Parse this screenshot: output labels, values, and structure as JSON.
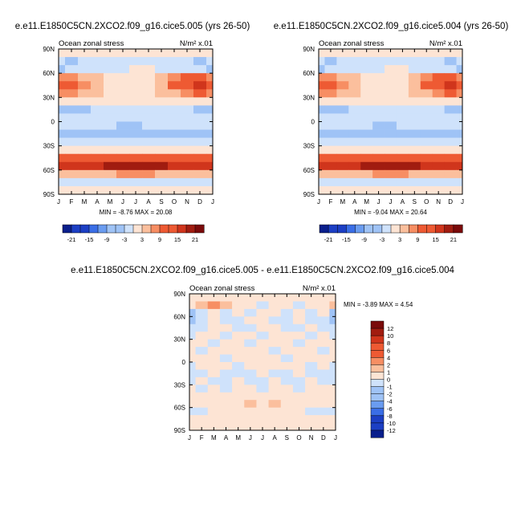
{
  "colors": {
    "negative_scale": [
      "#0a1f8c",
      "#1c3fc4",
      "#3a6ee6",
      "#6a9cf0",
      "#9fc3f6",
      "#cfe2fb"
    ],
    "neutral": "#ffffff",
    "positive_scale": [
      "#fde4d4",
      "#fbbf9d",
      "#f78e63",
      "#ee5a33",
      "#d0351c",
      "#a11c10",
      "#7a0a0a"
    ]
  },
  "chart_data": [
    {
      "type": "heatmap",
      "title": "e.e11.E1850C5CN.2XCO2.f09_g16.cice5.005 (yrs 26-50)",
      "left_label": "Ocean zonal stress",
      "units_label": "N/m² x.01",
      "x_tick_labels": [
        "J",
        "F",
        "M",
        "A",
        "M",
        "J",
        "J",
        "A",
        "S",
        "O",
        "N",
        "D",
        "J"
      ],
      "y_tick_labels": [
        "90N",
        "60N",
        "30N",
        "0",
        "30S",
        "60S",
        "90S"
      ],
      "stats_text": "MIN = -8.76 MAX = 20.08",
      "legend": {
        "orientation": "horizontal",
        "placement": "bottom",
        "labels": [
          "-21",
          "-15",
          "-9",
          "-3",
          "3",
          "9",
          "15",
          "21"
        ]
      },
      "rows": [
        {
          "lat": "90N-80N",
          "values": [
            0,
            0,
            0,
            0,
            0,
            0,
            0,
            0,
            0,
            0,
            0,
            0,
            0
          ]
        },
        {
          "lat": "80N-70N",
          "values": [
            -2,
            -4,
            -2,
            -2,
            -2,
            -1,
            -1,
            -1,
            -2,
            -2,
            -2,
            -4,
            -2
          ]
        },
        {
          "lat": "70N-60N",
          "values": [
            -4,
            -2,
            -2,
            -2,
            -1,
            -1,
            1,
            1,
            -1,
            -2,
            -2,
            -2,
            -4
          ]
        },
        {
          "lat": "60N-50N",
          "values": [
            7,
            6,
            4,
            3,
            2,
            1,
            1,
            2,
            4,
            6,
            9,
            11,
            7
          ]
        },
        {
          "lat": "50N-40N",
          "values": [
            11,
            10,
            7,
            4,
            2,
            1,
            1,
            2,
            5,
            9,
            13,
            15,
            11
          ]
        },
        {
          "lat": "40N-30N",
          "values": [
            8,
            7,
            5,
            3,
            1,
            1,
            1,
            1,
            3,
            5,
            8,
            10,
            8
          ]
        },
        {
          "lat": "30N-20N",
          "values": [
            1,
            1,
            1,
            1,
            1,
            1,
            1,
            1,
            1,
            1,
            1,
            1,
            1
          ]
        },
        {
          "lat": "20N-10N",
          "values": [
            -4,
            -4,
            -4,
            -3,
            -3,
            -3,
            -3,
            -3,
            -3,
            -3,
            -3,
            -4,
            -4
          ]
        },
        {
          "lat": "10N-0",
          "values": [
            -3,
            -3,
            -3,
            -2,
            -2,
            -2,
            -2,
            -1,
            -1,
            -2,
            -2,
            -3,
            -3
          ]
        },
        {
          "lat": "0-10S",
          "values": [
            -3,
            -3,
            -3,
            -3,
            -3,
            -4,
            -4,
            -3,
            -3,
            -3,
            -3,
            -3,
            -3
          ]
        },
        {
          "lat": "10S-20S",
          "values": [
            -6,
            -7,
            -7,
            -5,
            -5,
            -6,
            -7,
            -7,
            -6,
            -5,
            -5,
            -6,
            -6
          ]
        },
        {
          "lat": "20S-30S",
          "values": [
            -2,
            -2,
            -2,
            -1,
            -1,
            -2,
            -2,
            -2,
            -1,
            -1,
            -1,
            -2,
            -2
          ]
        },
        {
          "lat": "30S-40S",
          "values": [
            1,
            1,
            1,
            1,
            1,
            1,
            1,
            1,
            1,
            1,
            1,
            1,
            1
          ]
        },
        {
          "lat": "40S-50S",
          "values": [
            9,
            9,
            10,
            11,
            12,
            13,
            13,
            13,
            12,
            11,
            10,
            9,
            9
          ]
        },
        {
          "lat": "50S-60S",
          "values": [
            15,
            15,
            16,
            17,
            18,
            19,
            20,
            19,
            18,
            17,
            16,
            15,
            15
          ]
        },
        {
          "lat": "60S-70S",
          "values": [
            3,
            3,
            4,
            4,
            5,
            6,
            6,
            6,
            5,
            4,
            3,
            3,
            3
          ]
        },
        {
          "lat": "70S-80S",
          "values": [
            -1,
            -1,
            -1,
            -1,
            -1,
            -1,
            -1,
            -1,
            -1,
            -1,
            -1,
            -1,
            -1
          ]
        },
        {
          "lat": "80S-90S",
          "values": [
            0,
            0,
            0,
            0,
            0,
            0,
            0,
            0,
            0,
            0,
            0,
            0,
            0
          ]
        }
      ],
      "legend_levels": [
        -21,
        -18,
        -15,
        -12,
        -9,
        -6,
        -3,
        0,
        3,
        6,
        9,
        12,
        15,
        18,
        21
      ]
    },
    {
      "type": "heatmap",
      "title": "e.e11.E1850C5CN.2XCO2.f09_g16.cice5.004 (yrs 26-50)",
      "left_label": "Ocean zonal stress",
      "units_label": "N/m² x.01",
      "x_tick_labels": [
        "J",
        "F",
        "M",
        "A",
        "M",
        "J",
        "J",
        "A",
        "S",
        "O",
        "N",
        "D",
        "J"
      ],
      "y_tick_labels": [
        "90N",
        "60N",
        "30N",
        "0",
        "30S",
        "60S",
        "90S"
      ],
      "stats_text": "MIN = -9.04 MAX = 20.64",
      "legend": {
        "orientation": "horizontal",
        "placement": "bottom",
        "labels": [
          "-21",
          "-15",
          "-9",
          "-3",
          "3",
          "9",
          "15",
          "21"
        ]
      },
      "rows": [
        {
          "lat": "90N-80N",
          "values": [
            0,
            0,
            0,
            0,
            0,
            0,
            0,
            0,
            0,
            0,
            0,
            0,
            0
          ]
        },
        {
          "lat": "80N-70N",
          "values": [
            -2,
            -4,
            -2,
            -2,
            -2,
            -1,
            -1,
            -1,
            -2,
            -2,
            -2,
            -4,
            -2
          ]
        },
        {
          "lat": "70N-60N",
          "values": [
            -4,
            -3,
            -2,
            -2,
            -1,
            -1,
            1,
            1,
            -1,
            -2,
            -2,
            -3,
            -4
          ]
        },
        {
          "lat": "60N-50N",
          "values": [
            7,
            6,
            4,
            3,
            2,
            1,
            1,
            2,
            4,
            6,
            9,
            11,
            7
          ]
        },
        {
          "lat": "50N-40N",
          "values": [
            11,
            10,
            7,
            4,
            2,
            1,
            1,
            2,
            5,
            9,
            13,
            16,
            11
          ]
        },
        {
          "lat": "40N-30N",
          "values": [
            8,
            7,
            5,
            3,
            1,
            1,
            1,
            1,
            3,
            5,
            8,
            10,
            8
          ]
        },
        {
          "lat": "30N-20N",
          "values": [
            1,
            1,
            1,
            1,
            1,
            1,
            1,
            1,
            1,
            1,
            1,
            1,
            1
          ]
        },
        {
          "lat": "20N-10N",
          "values": [
            -4,
            -4,
            -4,
            -3,
            -3,
            -3,
            -3,
            -3,
            -3,
            -3,
            -3,
            -4,
            -4
          ]
        },
        {
          "lat": "10N-0",
          "values": [
            -3,
            -3,
            -3,
            -2,
            -2,
            -2,
            -2,
            -1,
            -1,
            -2,
            -2,
            -3,
            -3
          ]
        },
        {
          "lat": "0-10S",
          "values": [
            -3,
            -3,
            -3,
            -3,
            -3,
            -4,
            -4,
            -3,
            -3,
            -3,
            -3,
            -3,
            -3
          ]
        },
        {
          "lat": "10S-20S",
          "values": [
            -6,
            -7,
            -7,
            -5,
            -5,
            -6,
            -7,
            -7,
            -6,
            -5,
            -5,
            -6,
            -6
          ]
        },
        {
          "lat": "20S-30S",
          "values": [
            -2,
            -2,
            -2,
            -1,
            -1,
            -2,
            -2,
            -2,
            -1,
            -1,
            -1,
            -2,
            -2
          ]
        },
        {
          "lat": "30S-40S",
          "values": [
            1,
            1,
            1,
            1,
            1,
            1,
            1,
            1,
            1,
            1,
            1,
            1,
            1
          ]
        },
        {
          "lat": "40S-50S",
          "values": [
            9,
            9,
            10,
            11,
            12,
            13,
            13,
            13,
            12,
            11,
            10,
            9,
            9
          ]
        },
        {
          "lat": "50S-60S",
          "values": [
            15,
            15,
            16,
            17,
            18,
            19,
            20,
            20,
            18,
            17,
            16,
            15,
            15
          ]
        },
        {
          "lat": "60S-70S",
          "values": [
            3,
            3,
            4,
            4,
            5,
            6,
            6,
            6,
            5,
            4,
            3,
            3,
            3
          ]
        },
        {
          "lat": "70S-80S",
          "values": [
            -1,
            -1,
            -1,
            -1,
            -1,
            -1,
            -1,
            -1,
            -1,
            -1,
            -1,
            -1,
            -1
          ]
        },
        {
          "lat": "80S-90S",
          "values": [
            0,
            0,
            0,
            0,
            0,
            0,
            0,
            0,
            0,
            0,
            0,
            0,
            0
          ]
        }
      ],
      "legend_levels": [
        -21,
        -18,
        -15,
        -12,
        -9,
        -6,
        -3,
        0,
        3,
        6,
        9,
        12,
        15,
        18,
        21
      ]
    },
    {
      "type": "heatmap",
      "title": "e.e11.E1850C5CN.2XCO2.f09_g16.cice5.005 - e.e11.E1850C5CN.2XCO2.f09_g16.cice5.004",
      "left_label": "Ocean zonal stress",
      "units_label": "N/m² x.01",
      "x_tick_labels": [
        "J",
        "F",
        "M",
        "A",
        "M",
        "J",
        "J",
        "A",
        "S",
        "O",
        "N",
        "D",
        "J"
      ],
      "y_tick_labels": [
        "90N",
        "60N",
        "30N",
        "0",
        "30S",
        "60S",
        "90S"
      ],
      "stats_text": "MIN = -3.89 MAX = 4.54",
      "legend": {
        "orientation": "vertical",
        "placement": "right",
        "labels": [
          "12",
          "10",
          "8",
          "6",
          "4",
          "2",
          "1",
          "0",
          "-1",
          "-2",
          "-4",
          "-6",
          "-8",
          "-10",
          "-12"
        ]
      },
      "rows": [
        {
          "lat": "90N-80N",
          "values": [
            0,
            0,
            0,
            0,
            0,
            0,
            0,
            0,
            0,
            0,
            0,
            0,
            0
          ]
        },
        {
          "lat": "80N-70N",
          "values": [
            0.5,
            1.5,
            2,
            1,
            0.5,
            0.5,
            -0.5,
            0.5,
            0.5,
            -0.5,
            0.5,
            0.5,
            1.5
          ]
        },
        {
          "lat": "70N-60N",
          "values": [
            -2,
            -1,
            0.5,
            -0.5,
            0.5,
            -0.5,
            0.5,
            0.5,
            -0.5,
            0.5,
            -0.5,
            0.5,
            -1.5
          ]
        },
        {
          "lat": "60N-50N",
          "values": [
            -1.5,
            -0.5,
            0.5,
            -0.5,
            -0.5,
            0.5,
            0.5,
            -0.5,
            -0.5,
            0.5,
            -0.5,
            -0.5,
            -1.5
          ]
        },
        {
          "lat": "50N-40N",
          "values": [
            -0.5,
            -0.5,
            0.5,
            0.5,
            -0.5,
            -0.5,
            0.5,
            0.5,
            -0.5,
            -0.5,
            0.5,
            -0.5,
            -0.5
          ]
        },
        {
          "lat": "40N-30N",
          "values": [
            -0.5,
            0.5,
            0.5,
            -0.5,
            0.5,
            0.5,
            -0.5,
            0.5,
            0.5,
            0.5,
            -0.5,
            0.5,
            -0.5
          ]
        },
        {
          "lat": "30N-20N",
          "values": [
            0.5,
            0.5,
            -0.5,
            0.5,
            0.5,
            -0.5,
            0.5,
            0.5,
            0.5,
            -0.5,
            0.5,
            0.5,
            0.5
          ]
        },
        {
          "lat": "20N-10N",
          "values": [
            0.5,
            -0.5,
            0.5,
            0.5,
            0.5,
            0.5,
            0.5,
            -0.5,
            0.5,
            0.5,
            0.5,
            -0.5,
            0.5
          ]
        },
        {
          "lat": "10N-0",
          "values": [
            0.5,
            0.5,
            0.5,
            -0.5,
            0.5,
            0.5,
            0.5,
            0.5,
            -0.5,
            0.5,
            0.5,
            0.5,
            0.5
          ]
        },
        {
          "lat": "0-10S",
          "values": [
            -0.5,
            0.5,
            0.5,
            0.5,
            -0.5,
            0.5,
            0.5,
            0.5,
            0.5,
            0.5,
            -0.5,
            0.5,
            -0.5
          ]
        },
        {
          "lat": "10S-20S",
          "values": [
            -0.5,
            -0.5,
            0.5,
            -0.5,
            -0.5,
            -0.5,
            0.5,
            -0.5,
            -0.5,
            0.5,
            -0.5,
            -0.5,
            -0.5
          ]
        },
        {
          "lat": "20S-30S",
          "values": [
            -0.5,
            0.5,
            -0.5,
            -0.5,
            0.5,
            -0.5,
            -0.5,
            0.5,
            -0.5,
            -0.5,
            0.5,
            -0.5,
            -0.5
          ]
        },
        {
          "lat": "30S-40S",
          "values": [
            0.5,
            -0.5,
            0.5,
            -0.5,
            0.5,
            0.5,
            -0.5,
            0.5,
            0.5,
            -0.5,
            0.5,
            0.5,
            0.5
          ]
        },
        {
          "lat": "40S-50S",
          "values": [
            0.5,
            0.5,
            0.5,
            0.5,
            0.5,
            0.5,
            0.5,
            0.5,
            0.5,
            0.5,
            0.5,
            0.5,
            0.5
          ]
        },
        {
          "lat": "50S-60S",
          "values": [
            0.5,
            0.5,
            0.5,
            0.5,
            0.5,
            1.5,
            0.5,
            1.5,
            0.5,
            0.5,
            0.5,
            0.5,
            0.5
          ]
        },
        {
          "lat": "60S-70S",
          "values": [
            -0.5,
            -0.5,
            0.5,
            0.5,
            0.5,
            0.5,
            0.5,
            0.5,
            0.5,
            0.5,
            -0.5,
            -0.5,
            -0.5
          ]
        },
        {
          "lat": "70S-80S",
          "values": [
            0.5,
            0.5,
            0,
            0,
            0,
            0,
            0,
            0,
            0,
            0,
            0,
            0.5,
            0.5
          ]
        },
        {
          "lat": "80S-90S",
          "values": [
            0,
            0,
            0,
            0,
            0,
            0,
            0,
            0,
            0,
            0,
            0,
            0,
            0
          ]
        }
      ],
      "legend_levels": [
        -12,
        -10,
        -8,
        -6,
        -4,
        -2,
        -1,
        0,
        1,
        2,
        4,
        6,
        8,
        10,
        12
      ]
    }
  ]
}
